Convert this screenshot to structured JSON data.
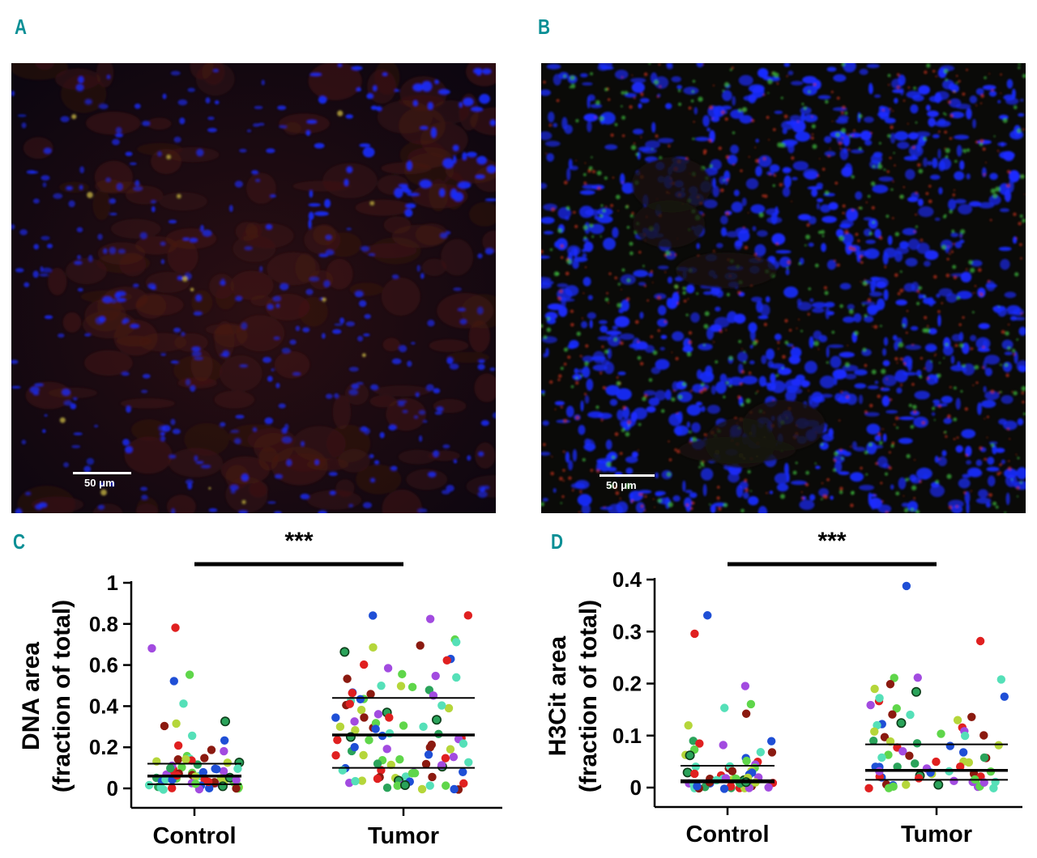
{
  "panels": {
    "A": {
      "letter": "A",
      "scale_label": "50 μm"
    },
    "B": {
      "letter": "B",
      "scale_label": "50 μm"
    },
    "C": {
      "letter": "C"
    },
    "D": {
      "letter": "D"
    }
  },
  "colors": {
    "panel_letter": "#0a8f95",
    "dapi_blue": "#1a2cff",
    "h3cit_green": "#3fbf3f",
    "membrane_red": "#c0301e",
    "sample_colors": [
      "#1f4fd6",
      "#e02020",
      "#a24be0",
      "#5fd64a",
      "#55e0b8",
      "#8b1a10",
      "#b5d63a",
      "#2aa35a"
    ]
  },
  "chart_data": [
    {
      "type": "scatter",
      "title": "",
      "xlabel": "",
      "ylabel": "DNA area\n(fraction of total)",
      "ylabel_lines": [
        "DNA area",
        "(fraction of total)"
      ],
      "categories": [
        "Control",
        "Tumor"
      ],
      "ylim": [
        0,
        1
      ],
      "yticks": [
        0,
        0.2,
        0.4,
        0.6,
        0.8,
        1
      ],
      "ytick_labels": [
        "0",
        "0.2",
        "0.4",
        "0.6",
        "0.8",
        "1"
      ],
      "significance": "***",
      "quartile_lines": {
        "Control": {
          "q1": 0.02,
          "median": 0.06,
          "q3": 0.12
        },
        "Tumor": {
          "q1": 0.1,
          "median": 0.26,
          "q3": 0.44
        }
      },
      "series": [
        {
          "category": "Control",
          "values": [
            0.52,
            0.78,
            0.68,
            0.55,
            0.41,
            0.3,
            0.31,
            0.32,
            0.23,
            0.21,
            0.18,
            0.16,
            0.15,
            0.14,
            0.12,
            0.11,
            0.1,
            0.09,
            0.08,
            0.07,
            0.06,
            0.06,
            0.05,
            0.05,
            0.04,
            0.04,
            0.03,
            0.03,
            0.02,
            0.02,
            0.01,
            0.01,
            0.01,
            0.0,
            0.0,
            0.0,
            0.26,
            0.19,
            0.13,
            0.12,
            0.09,
            0.08,
            0.07,
            0.05,
            0.04,
            0.03,
            0.02,
            0.01,
            0.0,
            0.13,
            0.11,
            0.1,
            0.09,
            0.07,
            0.06,
            0.05,
            0.04,
            0.03,
            0.02,
            0.01,
            0.0,
            0.15,
            0.14,
            0.1,
            0.08,
            0.06,
            0.04,
            0.02,
            0.01,
            0.0
          ]
        },
        {
          "category": "Tumor",
          "values": [
            0.84,
            0.84,
            0.82,
            0.72,
            0.71,
            0.7,
            0.68,
            0.66,
            0.63,
            0.6,
            0.58,
            0.56,
            0.54,
            0.53,
            0.5,
            0.48,
            0.47,
            0.46,
            0.45,
            0.44,
            0.42,
            0.4,
            0.38,
            0.37,
            0.35,
            0.34,
            0.33,
            0.31,
            0.3,
            0.29,
            0.28,
            0.27,
            0.26,
            0.25,
            0.24,
            0.23,
            0.22,
            0.2,
            0.19,
            0.18,
            0.17,
            0.16,
            0.15,
            0.14,
            0.13,
            0.12,
            0.11,
            0.1,
            0.1,
            0.09,
            0.08,
            0.07,
            0.06,
            0.05,
            0.05,
            0.04,
            0.03,
            0.02,
            0.02,
            0.01,
            0.01,
            0.0,
            0.0,
            0.0,
            0.43,
            0.41,
            0.36,
            0.32,
            0.27,
            0.21,
            0.16,
            0.12,
            0.08,
            0.05,
            0.03,
            0.01,
            0.5,
            0.46,
            0.39,
            0.33,
            0.29,
            0.24,
            0.19,
            0.14,
            0.09,
            0.06,
            0.04,
            0.02,
            0.0,
            0.62,
            0.55,
            0.49,
            0.4,
            0.35,
            0.3,
            0.25,
            0.2,
            0.15,
            0.11,
            0.07,
            0.03
          ]
        }
      ]
    },
    {
      "type": "scatter",
      "title": "",
      "xlabel": "",
      "ylabel": "H3Cit area\n(fraction of total)",
      "ylabel_lines": [
        "H3Cit area",
        "(fraction of total)"
      ],
      "categories": [
        "Control",
        "Tumor"
      ],
      "ylim": [
        0,
        0.4
      ],
      "yticks": [
        0,
        0.1,
        0.2,
        0.3,
        0.4
      ],
      "ytick_labels": [
        "0",
        "0.1",
        "0.2",
        "0.3",
        "0.4"
      ],
      "significance": "***",
      "quartile_lines": {
        "Control": {
          "q1": 0.01,
          "median": 0.013,
          "q3": 0.042
        },
        "Tumor": {
          "q1": 0.015,
          "median": 0.033,
          "q3": 0.083
        }
      },
      "series": [
        {
          "category": "Control",
          "values": [
            0.33,
            0.297,
            0.197,
            0.16,
            0.155,
            0.14,
            0.12,
            0.09,
            0.088,
            0.085,
            0.08,
            0.075,
            0.07,
            0.068,
            0.065,
            0.06,
            0.055,
            0.05,
            0.045,
            0.04,
            0.038,
            0.035,
            0.03,
            0.028,
            0.025,
            0.022,
            0.02,
            0.018,
            0.016,
            0.015,
            0.013,
            0.012,
            0.01,
            0.009,
            0.008,
            0.007,
            0.006,
            0.005,
            0.004,
            0.003,
            0.002,
            0.001,
            0.0,
            0.0,
            0.0,
            0.0,
            0.0,
            0.0,
            0.03,
            0.025,
            0.02,
            0.015,
            0.012,
            0.01,
            0.008,
            0.006,
            0.004,
            0.002,
            0.0,
            0.05,
            0.04,
            0.03,
            0.02,
            0.01,
            0.0
          ]
        },
        {
          "category": "Tumor",
          "values": [
            0.387,
            0.283,
            0.212,
            0.21,
            0.21,
            0.2,
            0.19,
            0.185,
            0.175,
            0.165,
            0.16,
            0.15,
            0.14,
            0.135,
            0.13,
            0.125,
            0.12,
            0.115,
            0.11,
            0.105,
            0.1,
            0.095,
            0.09,
            0.085,
            0.08,
            0.075,
            0.07,
            0.065,
            0.06,
            0.055,
            0.05,
            0.045,
            0.04,
            0.038,
            0.035,
            0.032,
            0.03,
            0.028,
            0.025,
            0.022,
            0.02,
            0.018,
            0.015,
            0.012,
            0.01,
            0.008,
            0.006,
            0.004,
            0.002,
            0.0,
            0.0,
            0.0,
            0.0,
            0.06,
            0.05,
            0.04,
            0.03,
            0.02,
            0.01,
            0.0,
            0.12,
            0.1,
            0.08,
            0.06,
            0.04,
            0.02,
            0.01,
            0.0,
            0.17,
            0.14,
            0.11,
            0.09,
            0.07,
            0.05,
            0.03,
            0.015
          ]
        }
      ]
    }
  ]
}
